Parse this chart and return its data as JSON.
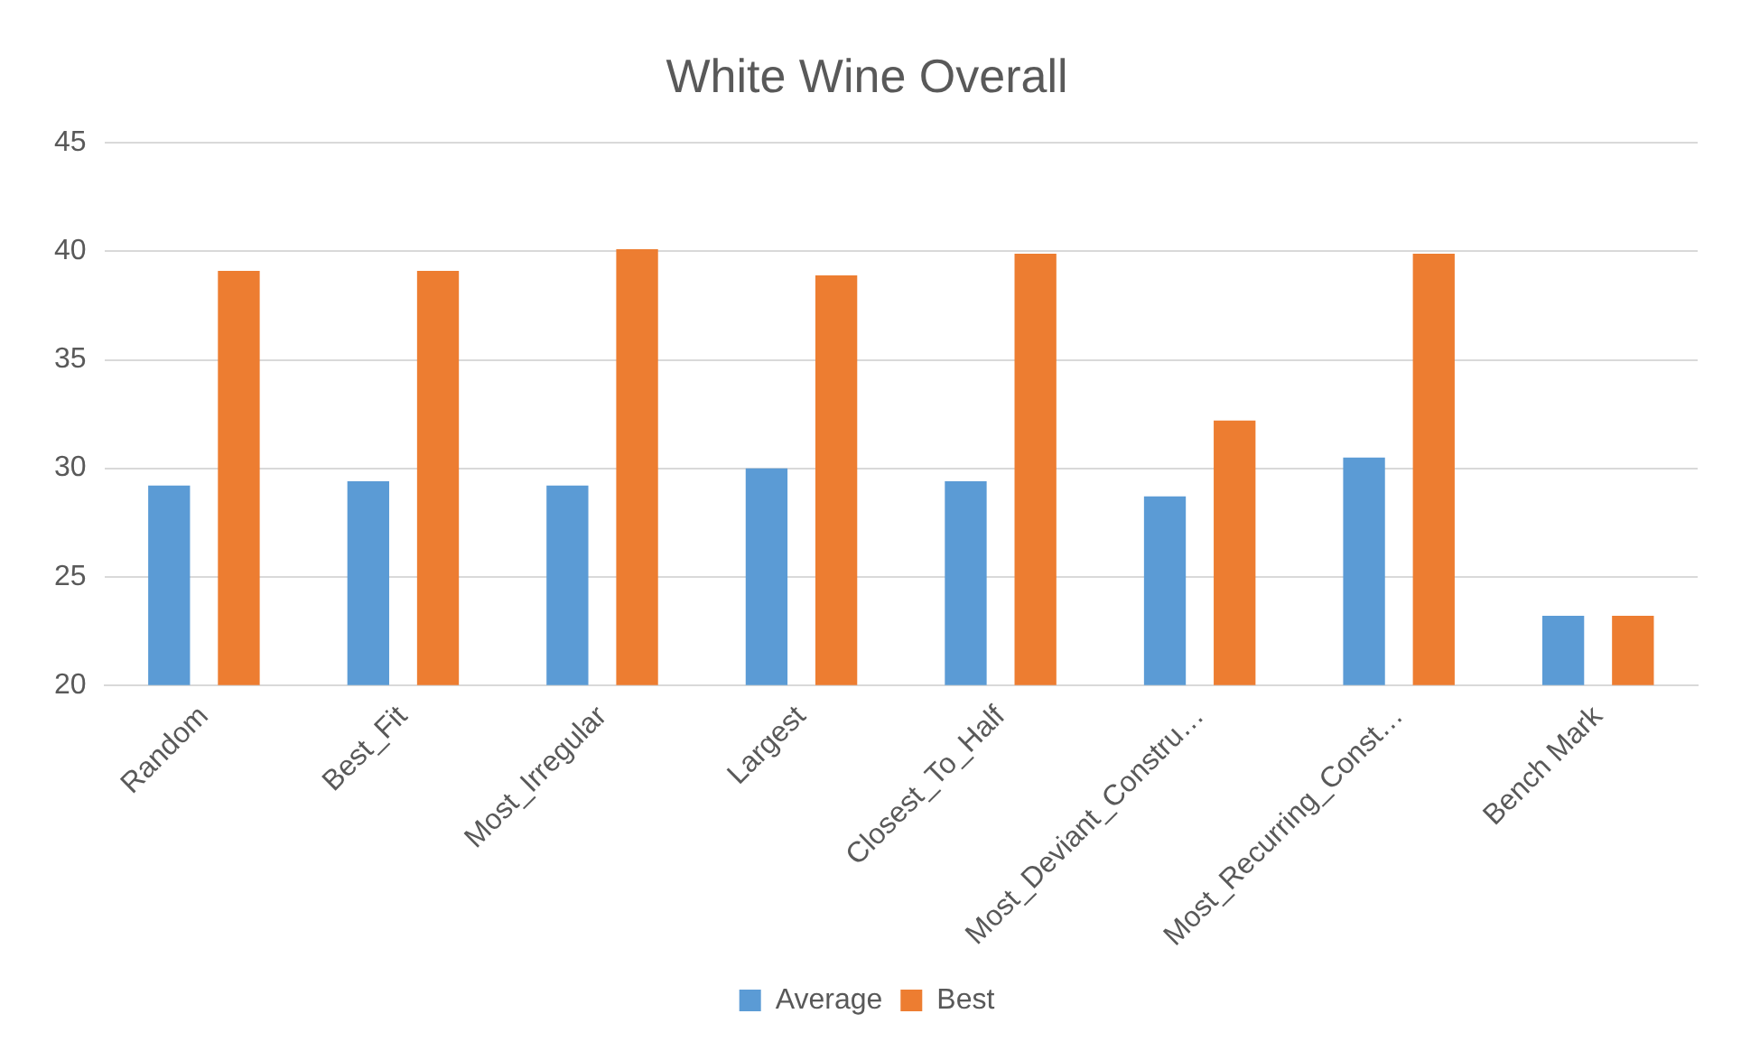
{
  "chart_data": {
    "type": "bar",
    "title": "White Wine Overall",
    "categories": [
      "Random",
      "Best_Fit",
      "Most_Irregular",
      "Largest",
      "Closest_To_Half",
      "Most_Deviant_Constru…",
      "Most_Recurring_Const…",
      "Bench Mark"
    ],
    "series": [
      {
        "name": "Average",
        "color": "#5b9bd5",
        "values": [
          29.2,
          29.4,
          29.2,
          30.0,
          29.4,
          28.7,
          30.5,
          23.2
        ]
      },
      {
        "name": "Best",
        "color": "#ed7d31",
        "values": [
          39.1,
          39.1,
          40.1,
          38.9,
          39.9,
          32.2,
          39.9,
          23.2
        ]
      }
    ],
    "ylim": [
      20,
      45
    ],
    "yticks": [
      20,
      25,
      30,
      35,
      40,
      45
    ],
    "grid": "y",
    "legend": "bottom"
  }
}
